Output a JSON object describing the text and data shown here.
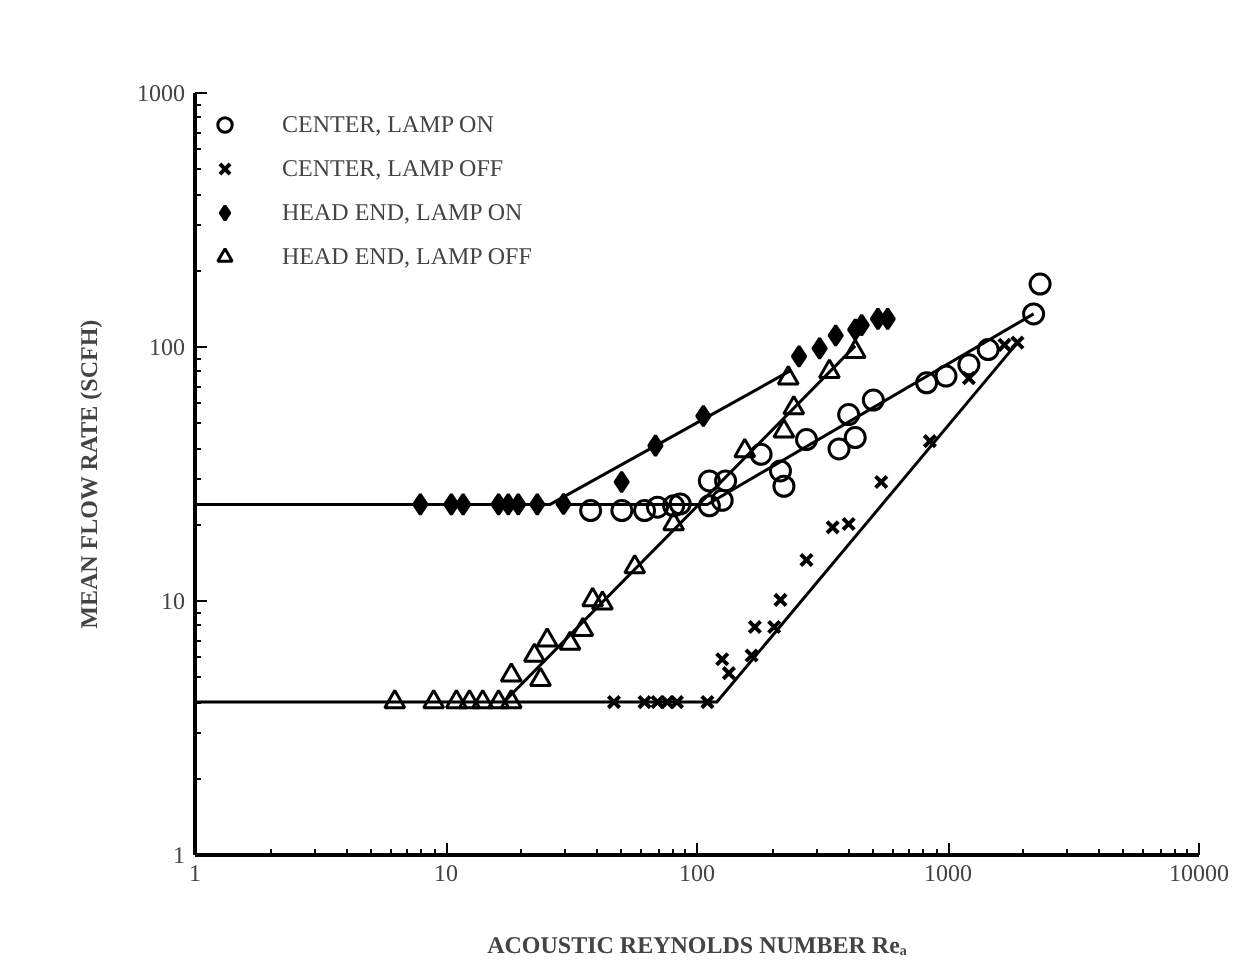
{
  "chart_data": {
    "type": "scatter",
    "xlabel": "ACOUSTIC REYNOLDS NUMBER Reₐ",
    "ylabel": "MEAN FLOW RATE (SCFH)",
    "log": "xy",
    "xlim": [
      1,
      10000
    ],
    "ylim": [
      1,
      1000
    ],
    "xticks": [
      1,
      10,
      100,
      1000,
      10000
    ],
    "yticks": [
      1,
      10,
      100,
      1000
    ],
    "grid": false,
    "legend": "top left",
    "series": [
      {
        "name": "CENTER, LAMP ON",
        "marker": "circle",
        "color": "#000000",
        "x": [
          37.7,
          50.2,
          61.8,
          69.6,
          80.7,
          85.7,
          112,
          126,
          112,
          130,
          180,
          215,
          222,
          273,
          368,
          427,
          402,
          504,
          822,
          982,
          1211,
          1446,
          2193,
          2328
        ],
        "values": [
          22.7,
          22.7,
          22.7,
          23.4,
          23.7,
          24.1,
          23.7,
          24.9,
          29.7,
          29.7,
          37.8,
          32.5,
          28.3,
          43.2,
          39.7,
          44.0,
          54.2,
          61.8,
          72.3,
          76.8,
          85.1,
          97.7,
          135,
          177
        ]
      },
      {
        "name": "CENTER, LAMP OFF",
        "marker": "cross",
        "color": "#000000",
        "x": [
          46.7,
          61.8,
          69.6,
          76.1,
          83.2,
          110,
          126,
          134,
          165,
          170,
          203,
          215,
          273,
          347,
          402,
          542,
          847,
          1211,
          1679,
          1891
        ],
        "values": [
          4,
          4,
          4,
          4,
          4,
          4,
          5.9,
          5.2,
          6.1,
          7.9,
          7.9,
          10.1,
          14.5,
          19.5,
          20.1,
          29.4,
          42.6,
          75.4,
          102,
          104
        ]
      },
      {
        "name": "HEAD END, LAMP ON",
        "marker": "diamond",
        "color": "#000000",
        "x": [
          7.9,
          10.5,
          11.7,
          16.2,
          17.7,
          19.4,
          23.1,
          29.4,
          50.1,
          68.3,
          106,
          255,
          308,
          357,
          427,
          453,
          526,
          575
        ],
        "values": [
          24,
          24,
          24,
          24,
          24,
          24,
          24,
          24.1,
          29.4,
          40.9,
          53.5,
          91.9,
          98.8,
          111,
          117,
          122,
          129,
          129
        ]
      },
      {
        "name": "HEAD END, LAMP OFF",
        "marker": "triangle",
        "color": "#000000",
        "x": [
          6.25,
          8.93,
          11.0,
          12.4,
          14.0,
          16.2,
          18.2,
          18.2,
          22.5,
          23.8,
          25.3,
          31.2,
          35.1,
          38.4,
          42.0,
          56.5,
          80.7,
          155,
          222,
          243,
          231,
          337,
          427
        ],
        "values": [
          4,
          4,
          4,
          4,
          4,
          4,
          4,
          5.1,
          6.1,
          4.9,
          7.0,
          6.8,
          7.7,
          10.1,
          9.8,
          13.6,
          20.1,
          39.0,
          46.6,
          57.5,
          75.4,
          80.0,
          95.9
        ]
      },
      {
        "type": "line",
        "color": "#000000",
        "marker": "none",
        "line_style": "solid",
        "x": [
          1,
          26,
          235
        ],
        "values": [
          24,
          24,
          80.5
        ]
      },
      {
        "type": "line",
        "color": "#000000",
        "marker": "none",
        "line_style": "solid",
        "x": [
          30,
          110,
          2193
        ],
        "values": [
          24,
          24,
          135
        ]
      },
      {
        "type": "line",
        "color": "#000000",
        "marker": "none",
        "line_style": "solid",
        "x": [
          1,
          120,
          1891
        ],
        "values": [
          4,
          4,
          104
        ]
      },
      {
        "type": "line",
        "color": "#000000",
        "marker": "none",
        "line_style": "solid",
        "x": [
          17,
          427
        ],
        "values": [
          4,
          101
        ]
      }
    ]
  }
}
